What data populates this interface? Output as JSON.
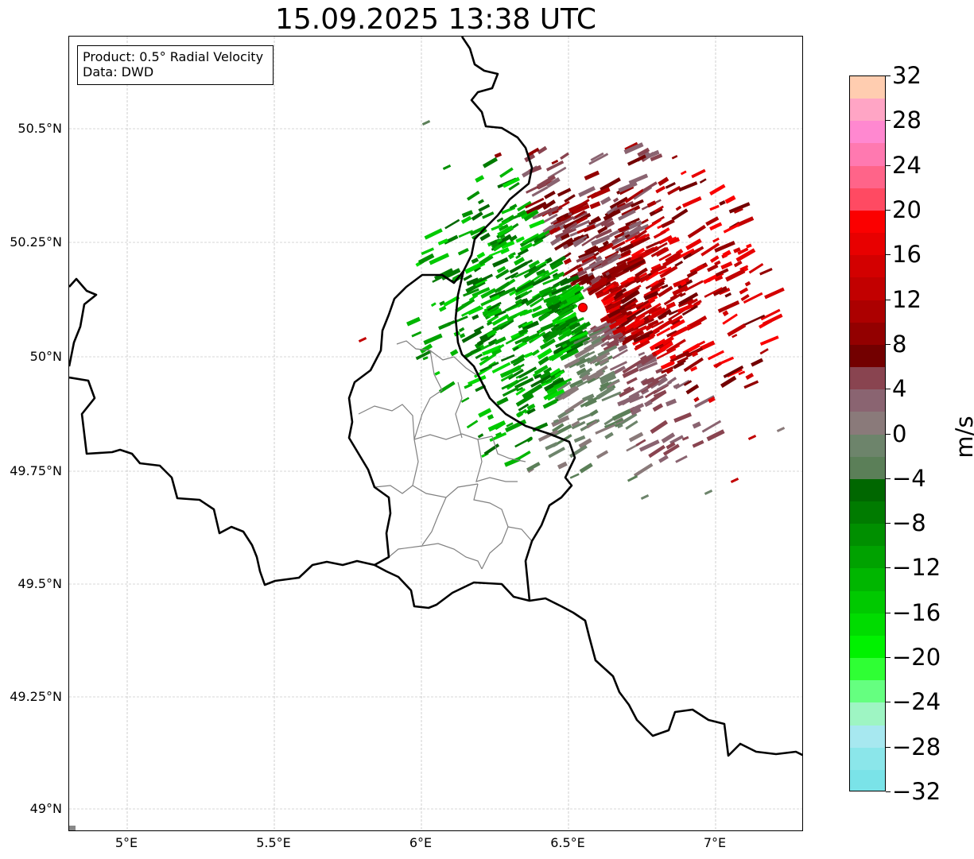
{
  "title": "15.09.2025 13:38 UTC",
  "info_box": {
    "product": "Product: 0.5° Radial Velocity",
    "data": "Data: DWD"
  },
  "latitude_labels": [
    "50.5°N",
    "50.25°N",
    "50°N",
    "49.75°N",
    "49.5°N",
    "49.25°N",
    "49°N"
  ],
  "longitude_labels": [
    "5°E",
    "5.5°E",
    "6°E",
    "6.5°E",
    "7°E"
  ],
  "colorbar": {
    "unit": "m/s",
    "tick_labels": [
      "32",
      "28",
      "24",
      "20",
      "16",
      "12",
      "8",
      "4",
      "0",
      "−4",
      "−8",
      "−12",
      "−16",
      "−20",
      "−24",
      "−28",
      "−32"
    ],
    "range": [
      -32,
      32
    ],
    "colors_top_to_bottom": [
      "#ffcdb0",
      "#ffa5c5",
      "#ff88d0",
      "#ff79b0",
      "#ff6489",
      "#ff4a62",
      "#fb0000",
      "#e80000",
      "#d30000",
      "#c20000",
      "#ac0000",
      "#930000",
      "#730000",
      "#894450",
      "#8a6471",
      "#8a7a7a",
      "#6d846b",
      "#5b7f58",
      "#006700",
      "#007b00",
      "#008f00",
      "#00a200",
      "#00b600",
      "#00c900",
      "#00dc00",
      "#00f200",
      "#2fff34",
      "#65ff80",
      "#9ef5c3",
      "#a7e8f0",
      "#8be6ea",
      "#7ae3e8"
    ]
  },
  "radar_site": {
    "lat": 50.11,
    "lon": 6.55,
    "color": "#ff0000"
  },
  "map_extent": {
    "lon": [
      4.8,
      7.3
    ],
    "lat": [
      48.95,
      50.7
    ]
  }
}
